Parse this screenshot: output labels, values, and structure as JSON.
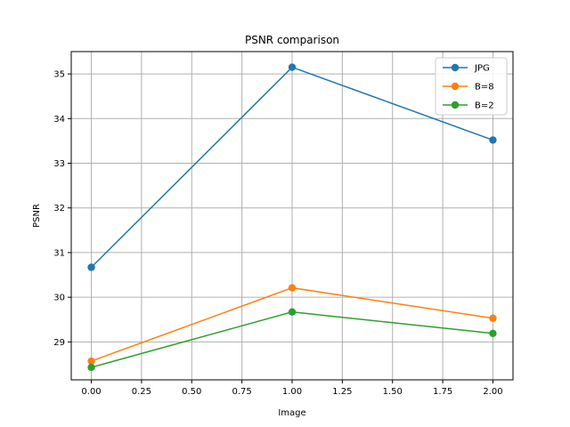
{
  "chart_data": {
    "type": "line",
    "title": "PSNR comparison",
    "xlabel": "Image",
    "ylabel": "PSNR",
    "x": [
      0,
      1,
      2
    ],
    "series": [
      {
        "name": "JPG",
        "values": [
          30.67,
          35.15,
          33.52
        ],
        "color": "#1f77b4"
      },
      {
        "name": "B=8",
        "values": [
          28.57,
          30.21,
          29.53
        ],
        "color": "#ff7f0e"
      },
      {
        "name": "B=2",
        "values": [
          28.43,
          29.67,
          29.19
        ],
        "color": "#2ca02c"
      }
    ],
    "xlim": [
      -0.1,
      2.1
    ],
    "ylim": [
      28.15,
      35.5
    ],
    "x_ticks": [
      "0.00",
      "0.25",
      "0.50",
      "0.75",
      "1.00",
      "1.25",
      "1.50",
      "1.75",
      "2.00"
    ],
    "y_ticks": [
      "29",
      "30",
      "31",
      "32",
      "33",
      "34",
      "35"
    ],
    "grid": true,
    "legend_position": "top-right"
  }
}
